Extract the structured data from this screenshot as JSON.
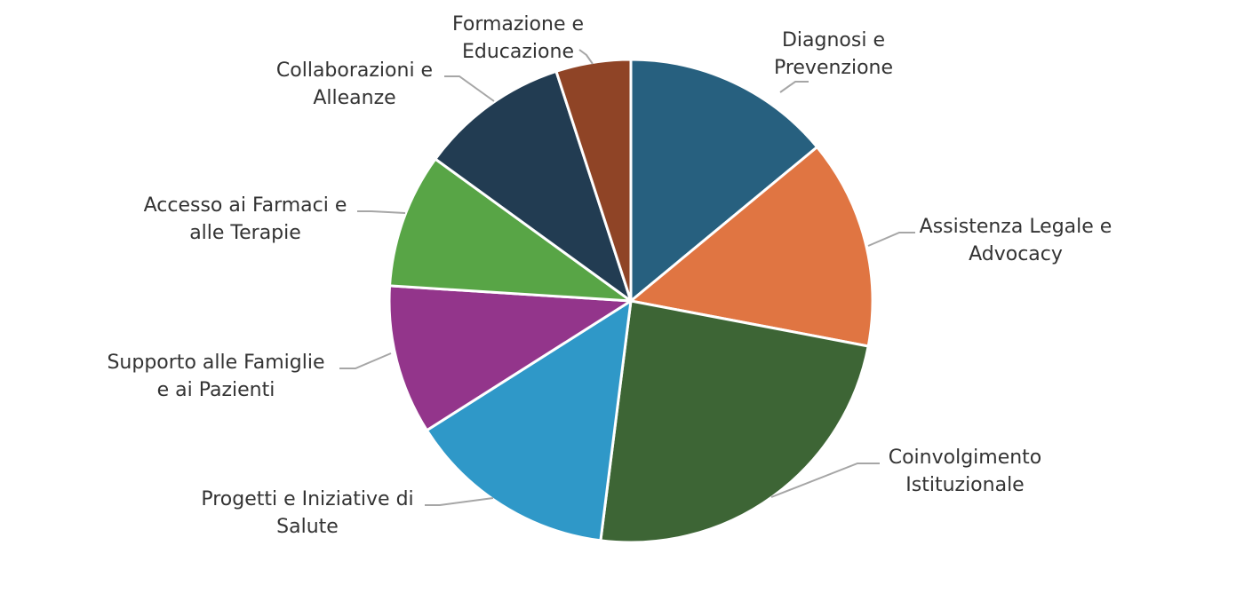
{
  "chart_data": {
    "type": "pie",
    "legend": "none",
    "start_angle_deg": 0,
    "direction": "clockwise",
    "slices": [
      {
        "label_lines": [
          "Diagnosi e",
          "Prevenzione"
        ],
        "value": 14,
        "color": "#27607f"
      },
      {
        "label_lines": [
          "Assistenza Legale e",
          "Advocacy"
        ],
        "value": 14,
        "color": "#e07542"
      },
      {
        "label_lines": [
          "Coinvolgimento",
          "Istituzionale"
        ],
        "value": 24,
        "color": "#3d6535"
      },
      {
        "label_lines": [
          "Progetti e Iniziative di",
          "Salute"
        ],
        "value": 14,
        "color": "#2f98c8"
      },
      {
        "label_lines": [
          "Supporto alle Famiglie",
          "e ai Pazienti"
        ],
        "value": 10,
        "color": "#93358b"
      },
      {
        "label_lines": [
          "Accesso ai Farmaci e",
          "alle Terapie"
        ],
        "value": 9,
        "color": "#58a546"
      },
      {
        "label_lines": [
          "Collaborazioni e",
          "Alleanze"
        ],
        "value": 10,
        "color": "#223c52"
      },
      {
        "label_lines": [
          "Formazione e",
          "Educazione"
        ],
        "value": 5,
        "color": "#8f4426"
      }
    ]
  }
}
